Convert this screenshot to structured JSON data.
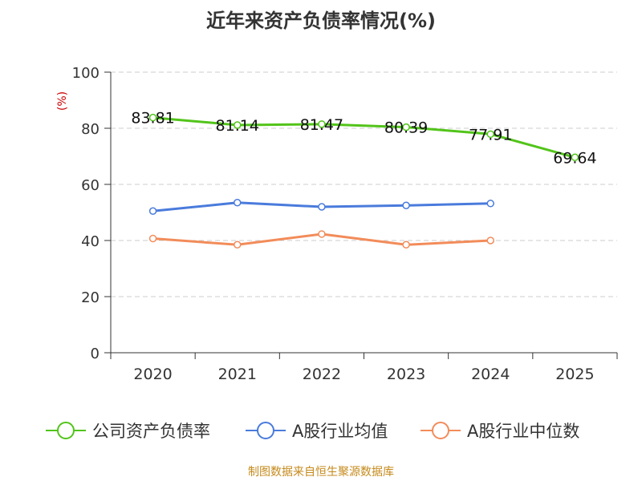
{
  "chart_data": {
    "type": "line",
    "title": "近年来资产负债率情况(%)",
    "ylabel": "(%)",
    "xlabel": "",
    "categories": [
      "2020",
      "2021",
      "2022",
      "2023",
      "2024",
      "2025"
    ],
    "ylim": [
      0,
      100
    ],
    "yticks": [
      0,
      20,
      40,
      60,
      80,
      100
    ],
    "grid": true,
    "legend_position": "bottom",
    "series": [
      {
        "name": "公司资产负债率",
        "color": "#52c41a",
        "values": [
          83.81,
          81.14,
          81.47,
          80.39,
          77.91,
          69.64
        ],
        "labels": [
          "83.81",
          "81.14",
          "81.47",
          "80.39",
          "77.91",
          "69.64"
        ]
      },
      {
        "name": "A股行业均值",
        "color": "#4a7bdc",
        "values": [
          50.5,
          53.5,
          52.0,
          52.5,
          53.2,
          null
        ]
      },
      {
        "name": "A股行业中位数",
        "color": "#f28c5a",
        "values": [
          40.7,
          38.5,
          42.3,
          38.5,
          40.0,
          null
        ]
      }
    ]
  },
  "source": "制图数据来自恒生聚源数据库"
}
